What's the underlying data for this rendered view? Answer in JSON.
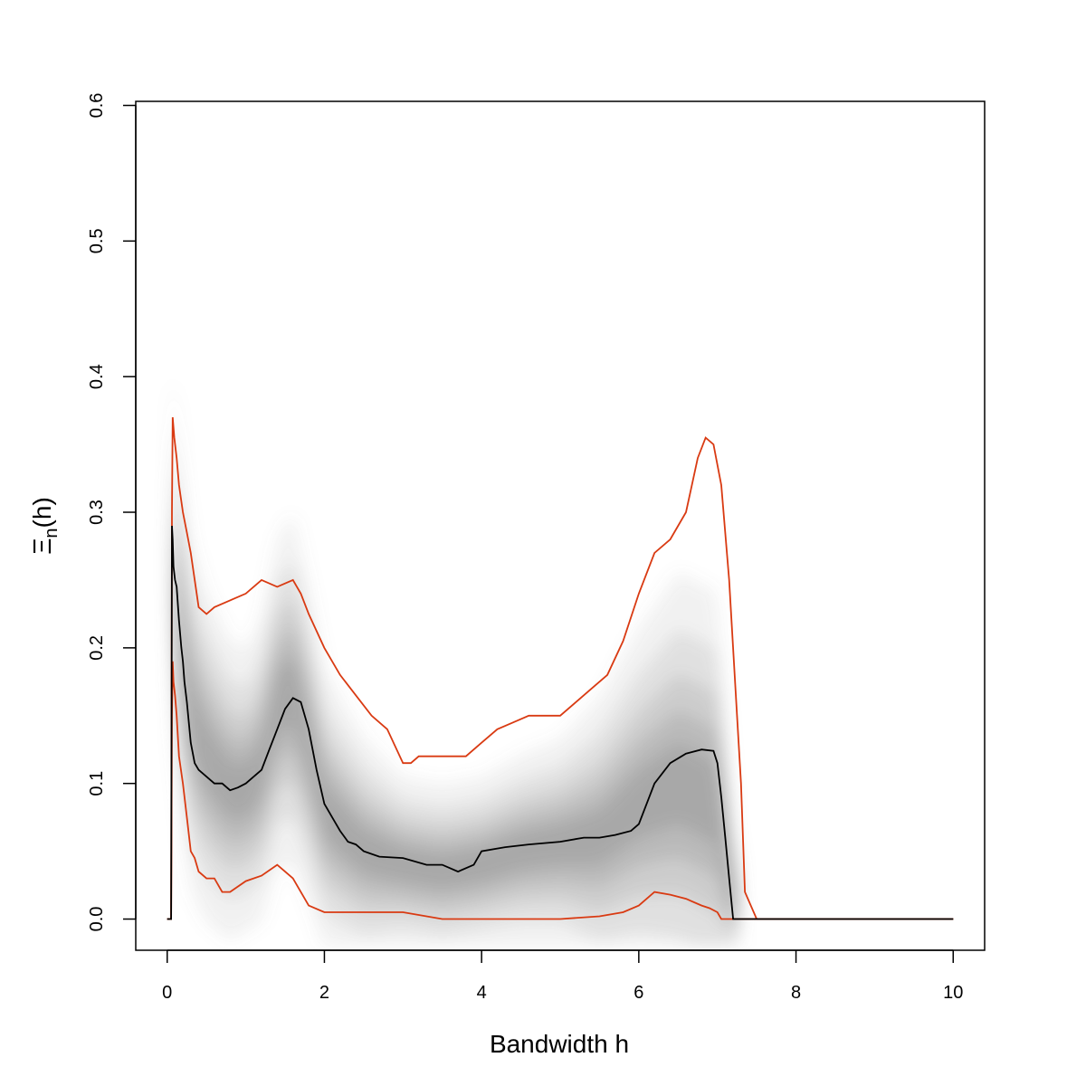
{
  "chart_data": {
    "type": "line",
    "title": "",
    "xlabel": "Bandwidth h",
    "ylabel_main": "Ξ",
    "ylabel_sub": "n",
    "ylabel_tail": "(h)",
    "xlim": [
      -0.4,
      10.4
    ],
    "ylim": [
      -0.023,
      0.603
    ],
    "x_ticks": [
      0,
      2,
      4,
      6,
      8,
      10
    ],
    "x_tick_labels": [
      "0",
      "2",
      "4",
      "6",
      "8",
      "10"
    ],
    "y_ticks": [
      0.0,
      0.1,
      0.2,
      0.3,
      0.4,
      0.5,
      0.6
    ],
    "y_tick_labels": [
      "0.0",
      "0.1",
      "0.2",
      "0.3",
      "0.4",
      "0.5",
      "0.6"
    ],
    "grid": false,
    "legend": "none",
    "colors": {
      "median": "#000000",
      "band": "#d93a12",
      "density": "#777777"
    },
    "band_center": {
      "x": [
        0.07,
        0.1,
        0.2,
        0.3,
        0.5,
        0.8,
        1.0,
        1.2,
        1.4,
        1.6,
        1.8,
        2.0,
        2.5,
        3.0,
        3.5,
        4.0,
        4.5,
        5.0,
        5.5,
        6.0,
        6.5,
        7.0,
        7.15,
        7.3
      ],
      "values": [
        0.27,
        0.25,
        0.19,
        0.15,
        0.12,
        0.095,
        0.095,
        0.11,
        0.16,
        0.17,
        0.13,
        0.08,
        0.05,
        0.04,
        0.035,
        0.04,
        0.05,
        0.055,
        0.06,
        0.085,
        0.1,
        0.085,
        0.03,
        0.002
      ]
    },
    "band_halfwidth": {
      "x": [
        0.07,
        0.3,
        1.0,
        1.6,
        2.0,
        3.0,
        4.0,
        5.0,
        6.0,
        6.5,
        7.0,
        7.2,
        7.4
      ],
      "values": [
        0.05,
        0.05,
        0.04,
        0.05,
        0.04,
        0.025,
        0.025,
        0.03,
        0.05,
        0.06,
        0.06,
        0.02,
        0.005
      ]
    },
    "series": [
      {
        "role": "median",
        "x": [
          0,
          0.05,
          0.06,
          0.07,
          0.08,
          0.1,
          0.12,
          0.15,
          0.18,
          0.2,
          0.22,
          0.25,
          0.3,
          0.35,
          0.4,
          0.5,
          0.6,
          0.7,
          0.8,
          0.9,
          1.0,
          1.1,
          1.2,
          1.3,
          1.4,
          1.5,
          1.6,
          1.7,
          1.8,
          1.9,
          2.0,
          2.1,
          2.2,
          2.3,
          2.4,
          2.5,
          2.7,
          3.0,
          3.3,
          3.5,
          3.7,
          3.9,
          4.0,
          4.3,
          4.6,
          5.0,
          5.3,
          5.5,
          5.7,
          5.9,
          6.0,
          6.2,
          6.4,
          6.6,
          6.8,
          6.95,
          7.0,
          7.05,
          7.1,
          7.15,
          7.2,
          7.3,
          7.5,
          8.0,
          10.0
        ],
        "values": [
          0.0,
          0.0,
          0.29,
          0.28,
          0.26,
          0.25,
          0.245,
          0.22,
          0.2,
          0.19,
          0.175,
          0.16,
          0.13,
          0.115,
          0.11,
          0.105,
          0.1,
          0.1,
          0.095,
          0.097,
          0.1,
          0.105,
          0.11,
          0.125,
          0.14,
          0.155,
          0.163,
          0.16,
          0.14,
          0.11,
          0.085,
          0.075,
          0.065,
          0.057,
          0.055,
          0.05,
          0.046,
          0.045,
          0.04,
          0.04,
          0.035,
          0.04,
          0.05,
          0.053,
          0.055,
          0.057,
          0.06,
          0.06,
          0.062,
          0.065,
          0.07,
          0.1,
          0.115,
          0.122,
          0.125,
          0.124,
          0.115,
          0.09,
          0.06,
          0.03,
          0.0,
          0.0,
          0.0,
          0.0,
          0.0
        ]
      },
      {
        "role": "upper",
        "x": [
          0,
          0.05,
          0.06,
          0.07,
          0.09,
          0.12,
          0.15,
          0.2,
          0.25,
          0.3,
          0.4,
          0.5,
          0.6,
          0.8,
          1.0,
          1.2,
          1.4,
          1.6,
          1.7,
          1.8,
          2.0,
          2.2,
          2.4,
          2.6,
          2.8,
          3.0,
          3.1,
          3.2,
          3.5,
          3.8,
          4.0,
          4.2,
          4.4,
          4.6,
          4.8,
          5.0,
          5.2,
          5.4,
          5.6,
          5.8,
          6.0,
          6.2,
          6.4,
          6.6,
          6.75,
          6.85,
          6.95,
          7.05,
          7.15,
          7.25,
          7.3,
          7.35,
          7.5,
          8.0,
          10.0
        ],
        "values": [
          0.0,
          0.0,
          0.3,
          0.37,
          0.355,
          0.34,
          0.32,
          0.3,
          0.285,
          0.27,
          0.23,
          0.225,
          0.23,
          0.235,
          0.24,
          0.25,
          0.245,
          0.25,
          0.24,
          0.225,
          0.2,
          0.18,
          0.165,
          0.15,
          0.14,
          0.115,
          0.115,
          0.12,
          0.12,
          0.12,
          0.13,
          0.14,
          0.145,
          0.15,
          0.15,
          0.15,
          0.16,
          0.17,
          0.18,
          0.205,
          0.24,
          0.27,
          0.28,
          0.3,
          0.34,
          0.355,
          0.35,
          0.32,
          0.25,
          0.15,
          0.1,
          0.02,
          0.0,
          0.0,
          0.0
        ]
      },
      {
        "role": "lower",
        "x": [
          0,
          0.05,
          0.06,
          0.07,
          0.08,
          0.1,
          0.12,
          0.15,
          0.2,
          0.25,
          0.3,
          0.35,
          0.4,
          0.5,
          0.6,
          0.7,
          0.8,
          1.0,
          1.2,
          1.4,
          1.5,
          1.6,
          1.7,
          1.8,
          2.0,
          2.2,
          2.5,
          3.0,
          3.5,
          4.0,
          4.5,
          5.0,
          5.5,
          5.8,
          6.0,
          6.2,
          6.4,
          6.6,
          6.8,
          6.9,
          7.0,
          7.05,
          7.1,
          7.5,
          8.0,
          10.0
        ],
        "values": [
          0.0,
          0.0,
          0.15,
          0.19,
          0.175,
          0.165,
          0.15,
          0.12,
          0.1,
          0.075,
          0.05,
          0.045,
          0.035,
          0.03,
          0.03,
          0.02,
          0.02,
          0.028,
          0.032,
          0.04,
          0.035,
          0.03,
          0.02,
          0.01,
          0.005,
          0.005,
          0.005,
          0.005,
          0.0,
          0.0,
          0.0,
          0.0,
          0.002,
          0.005,
          0.01,
          0.02,
          0.018,
          0.015,
          0.01,
          0.008,
          0.005,
          0.0,
          0.0,
          0.0,
          0.0,
          0.0
        ]
      }
    ]
  }
}
